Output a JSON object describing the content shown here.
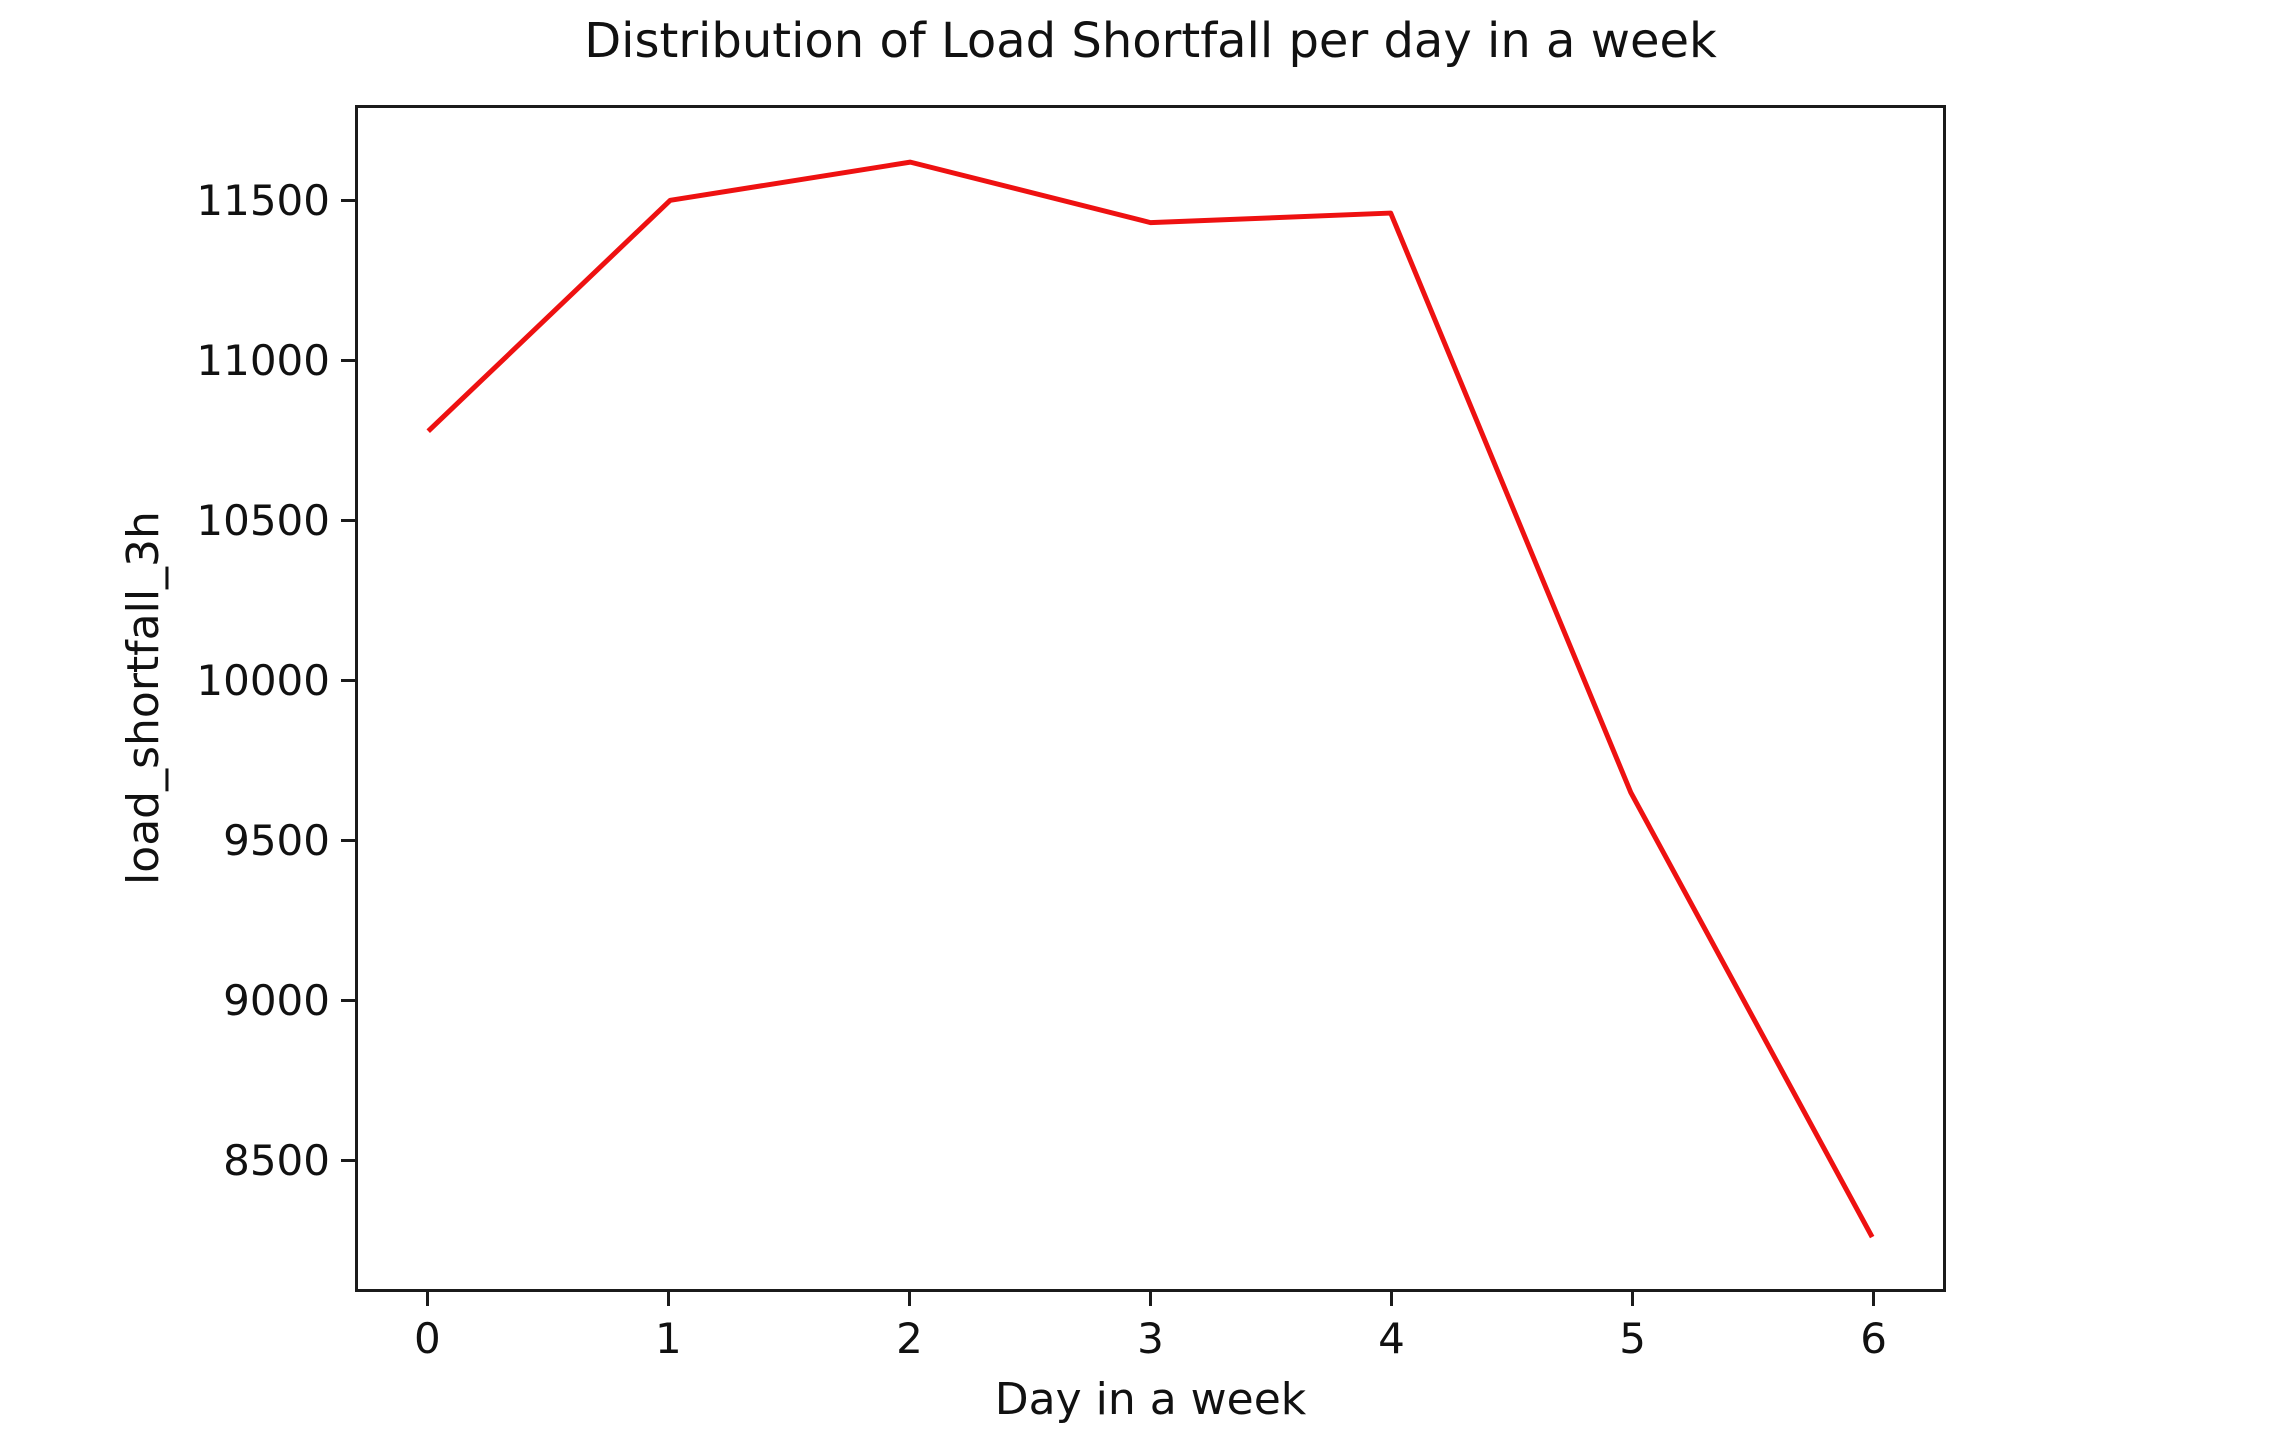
{
  "chart_data": {
    "type": "line",
    "title": "Distribution of Load Shortfall per day in a week",
    "xlabel": "Day in a week",
    "ylabel": "load_shortfall_3h",
    "x": [
      0,
      1,
      2,
      3,
      4,
      5,
      6
    ],
    "y": [
      10790,
      11510,
      11630,
      11440,
      11470,
      9650,
      8260
    ],
    "xticks": [
      0,
      1,
      2,
      3,
      4,
      5,
      6
    ],
    "yticks": [
      8500,
      9000,
      9500,
      10000,
      10500,
      11000,
      11500
    ],
    "xlim": [
      -0.3,
      6.3
    ],
    "ylim": [
      8090,
      11800
    ],
    "grid": false,
    "legend": null,
    "line_color": "#ee1111",
    "spine_color": "#1b1b1b",
    "text_color": "#111111",
    "background_color": "#ffffff"
  }
}
